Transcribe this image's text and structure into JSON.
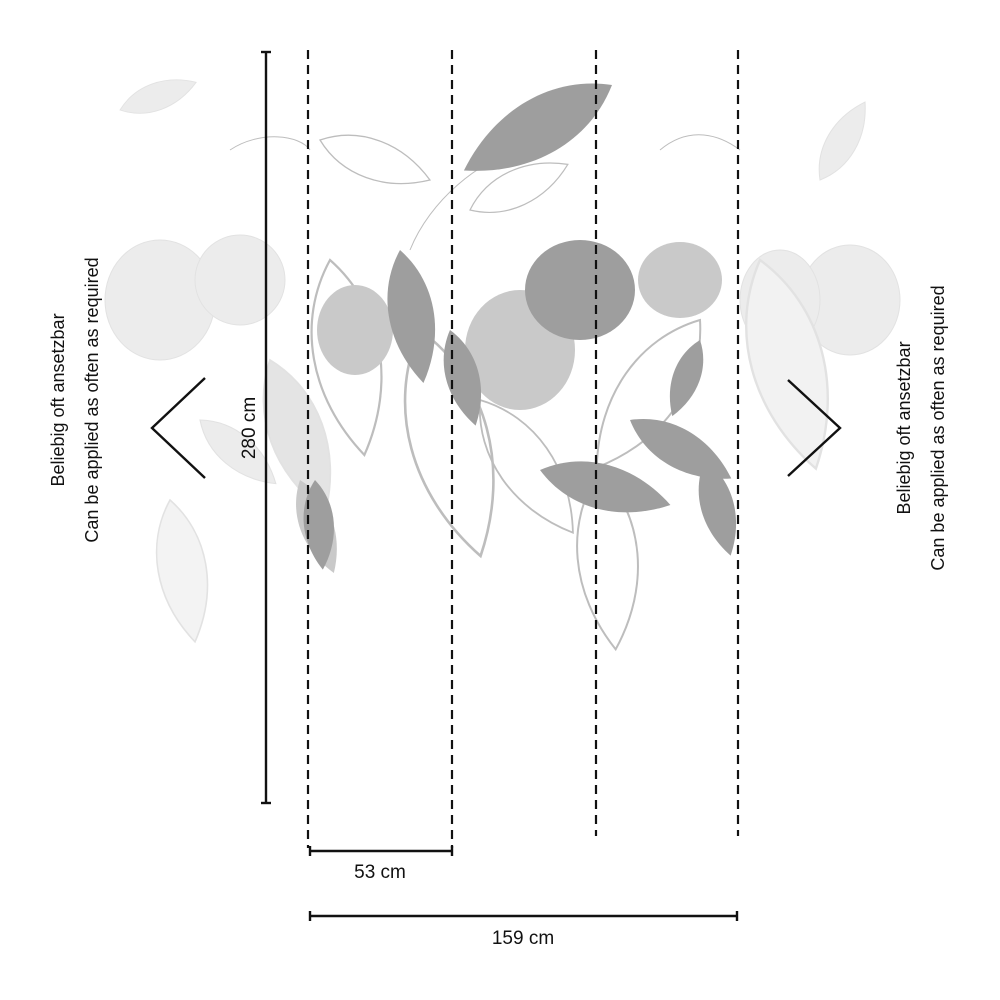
{
  "dimensions": {
    "height_label": "280 cm",
    "panel_width_label": "53 cm",
    "total_width_label": "159 cm"
  },
  "repeat_note": {
    "line1": "Beliebig oft ansetzbar",
    "line2": "Can be applied as often as required"
  },
  "panel_count": 3,
  "colors": {
    "line": "#111111",
    "leaf_dark": "#9e9e9e",
    "leaf_light": "#c9c9c9",
    "leaf_faded": "#ececec",
    "leaf_outline": "#bdbdbd"
  }
}
